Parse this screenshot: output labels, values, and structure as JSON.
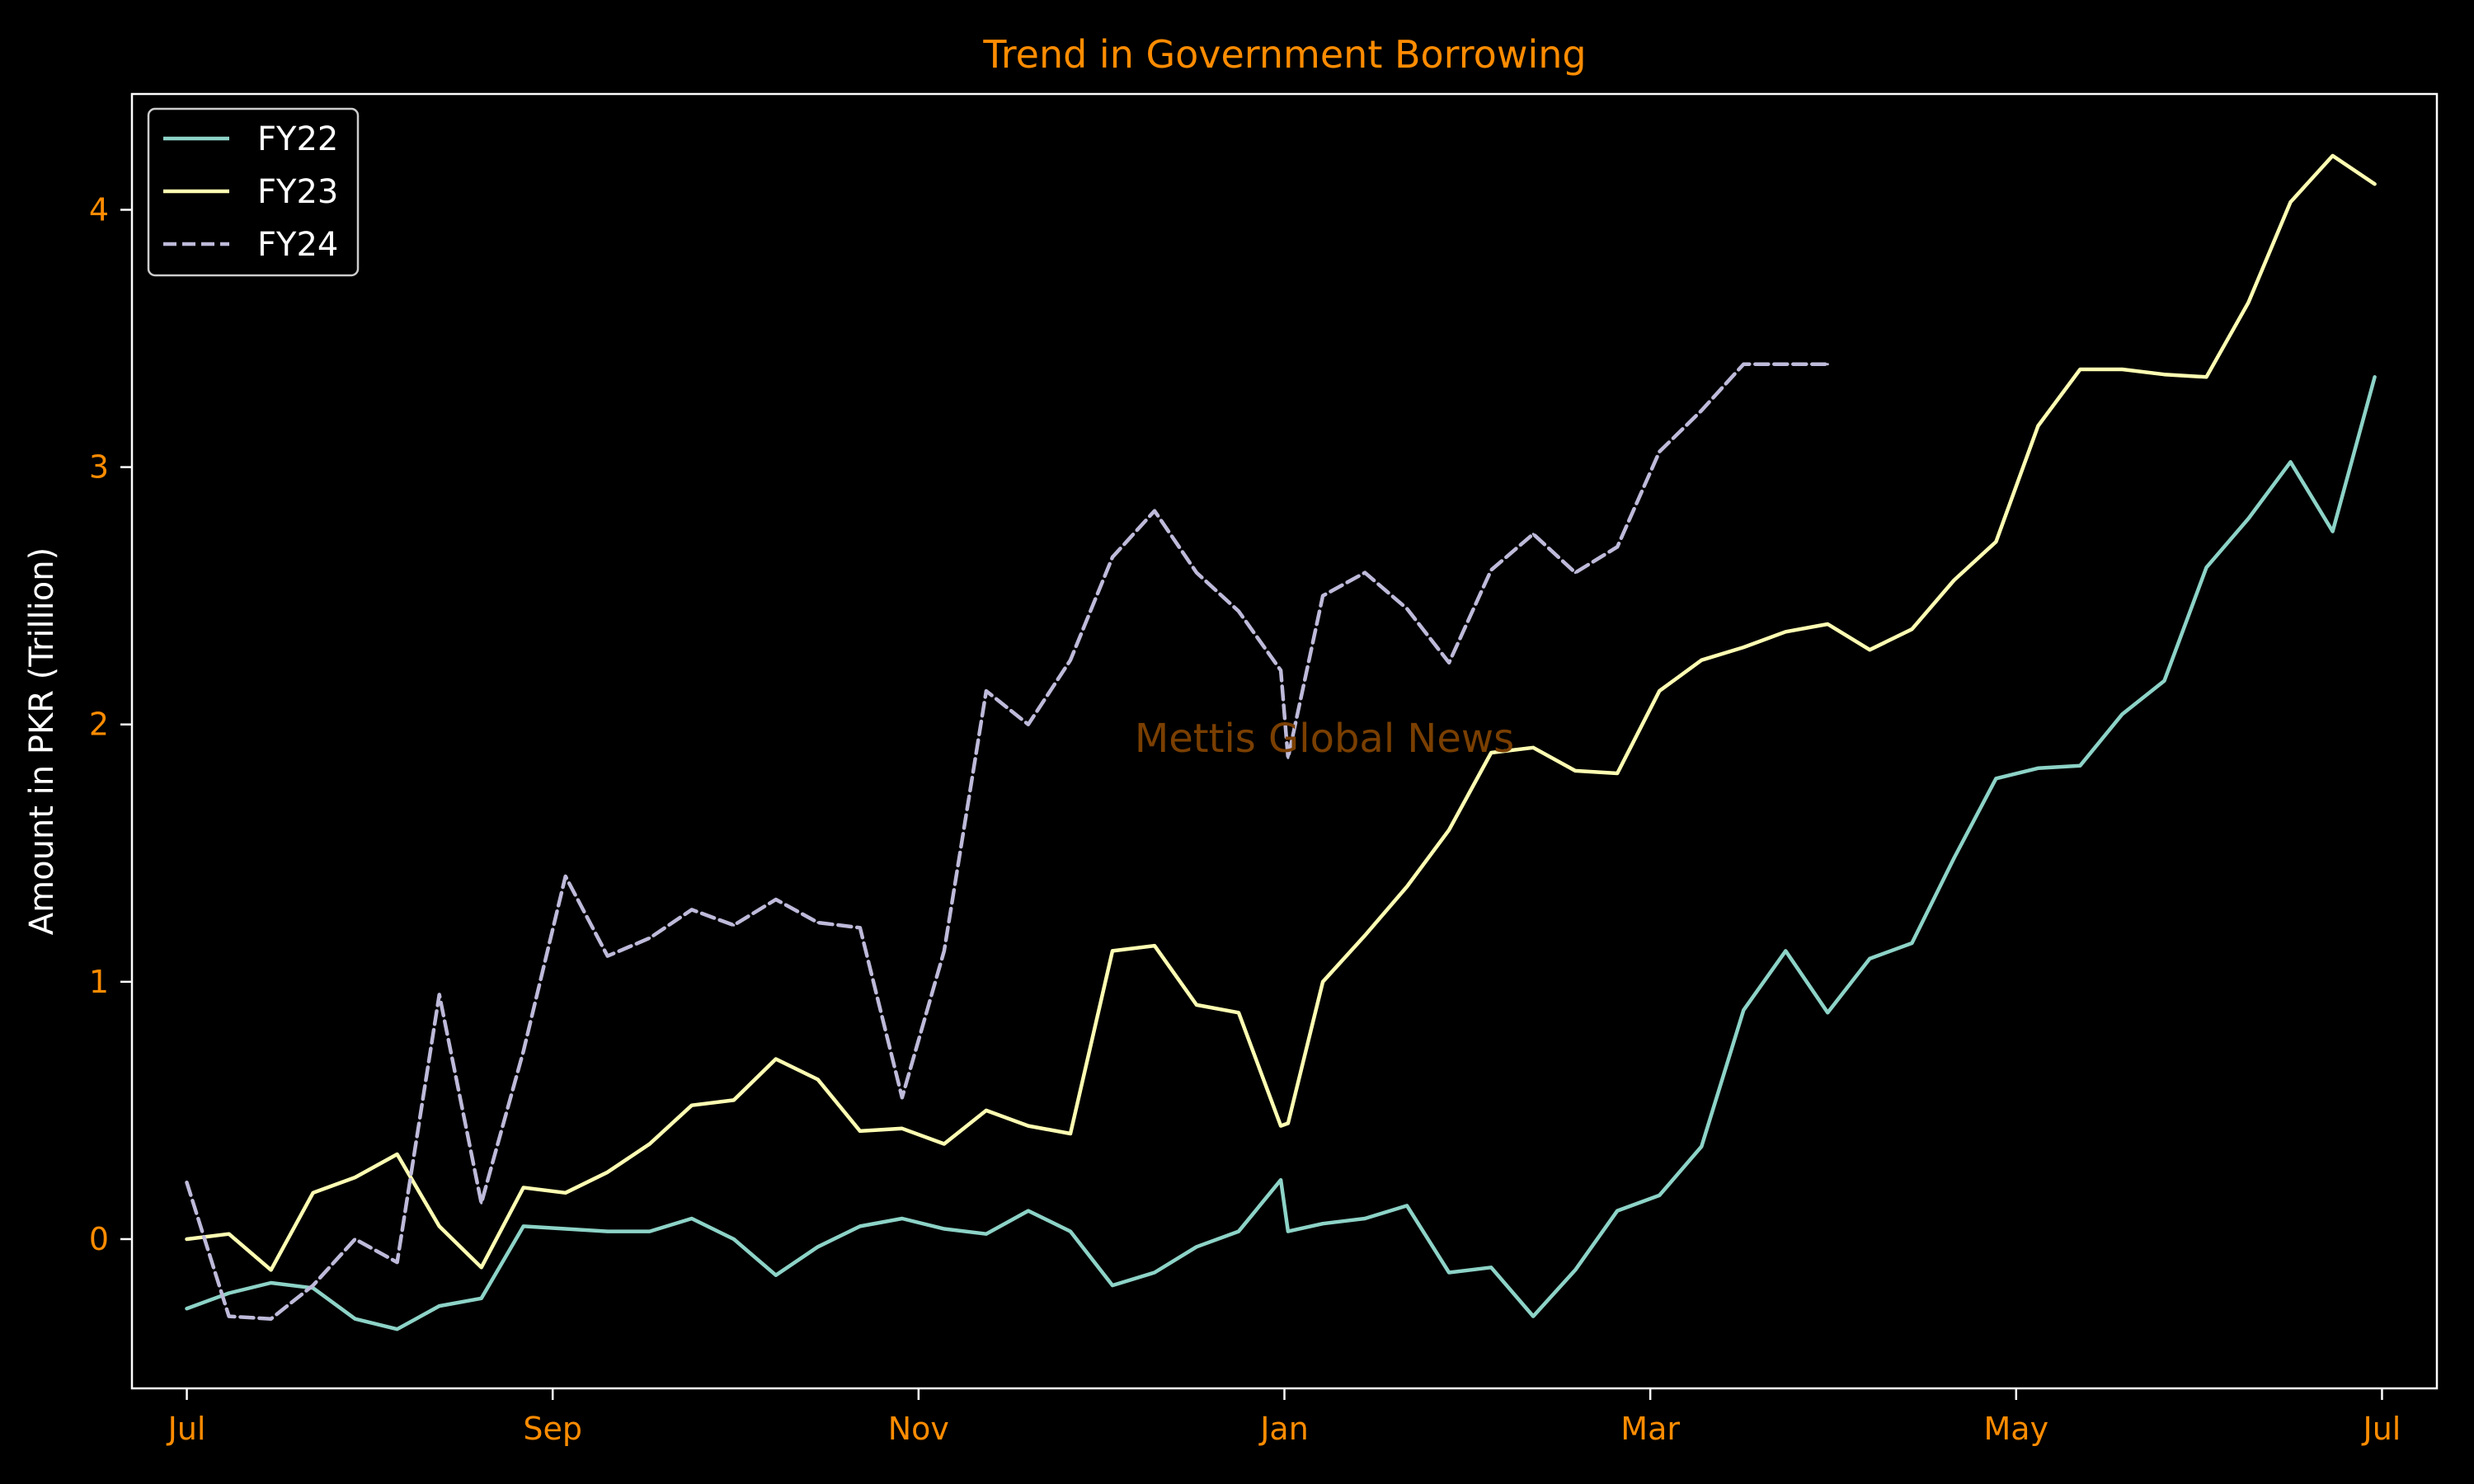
{
  "chart_data": {
    "type": "line",
    "title": "Trend in Government Borrowing",
    "xlabel": "",
    "ylabel": "Amount in PKR (Trillion)",
    "watermark": "Mettis Global News",
    "x_unit": "month of fiscal year (0 = Jul, 12 = following Jul)",
    "xlim": [
      -0.3,
      12.3
    ],
    "ylim": [
      -0.58,
      4.45
    ],
    "xticks": [
      0,
      2,
      4,
      6,
      8,
      10,
      12
    ],
    "xtick_labels": [
      "Jul",
      "Sep",
      "Nov",
      "Jan",
      "Mar",
      "May",
      "Jul"
    ],
    "yticks": [
      0,
      1,
      2,
      3,
      4
    ],
    "ytick_labels": [
      "0",
      "1",
      "2",
      "3",
      "4"
    ],
    "grid": false,
    "legend_position": "top-left",
    "colors": {
      "background": "#000000",
      "title": "#ff8c00",
      "tick_label": "#ff8c00",
      "axis_label": "#ffffff",
      "spine": "#ffffff",
      "watermark": "#7a3f00"
    },
    "series": [
      {
        "name": "FY22",
        "color": "#8dd3c7",
        "dash": "solid",
        "x": [
          0.0,
          0.23,
          0.46,
          0.69,
          0.92,
          1.15,
          1.38,
          1.61,
          1.84,
          2.07,
          2.3,
          2.53,
          2.76,
          2.99,
          3.22,
          3.45,
          3.68,
          3.91,
          4.14,
          4.37,
          4.6,
          4.83,
          5.06,
          5.29,
          5.52,
          5.75,
          5.98,
          6.02,
          6.21,
          6.44,
          6.67,
          6.9,
          7.13,
          7.36,
          7.59,
          7.82,
          8.05,
          8.28,
          8.51,
          8.74,
          8.97,
          9.2,
          9.43,
          9.66,
          9.89,
          10.12,
          10.35,
          10.58,
          10.81,
          11.04,
          11.27,
          11.5,
          11.73,
          11.96
        ],
        "y": [
          -0.27,
          -0.21,
          -0.17,
          -0.19,
          -0.31,
          -0.35,
          -0.26,
          -0.23,
          0.05,
          0.04,
          0.03,
          0.03,
          0.08,
          0.0,
          -0.14,
          -0.03,
          0.05,
          0.08,
          0.04,
          0.02,
          0.11,
          0.03,
          -0.18,
          -0.13,
          -0.03,
          0.03,
          0.23,
          0.03,
          0.06,
          0.08,
          0.13,
          -0.13,
          -0.11,
          -0.3,
          -0.12,
          0.11,
          0.17,
          0.36,
          0.89,
          1.12,
          0.88,
          1.09,
          1.15,
          1.48,
          1.79,
          1.83,
          1.84,
          2.04,
          2.17,
          2.61,
          2.8,
          3.02,
          2.75,
          3.35
        ]
      },
      {
        "name": "FY23",
        "color": "#ffffb3",
        "dash": "solid",
        "x": [
          0.0,
          0.23,
          0.46,
          0.69,
          0.92,
          1.15,
          1.38,
          1.61,
          1.84,
          2.07,
          2.3,
          2.53,
          2.76,
          2.99,
          3.22,
          3.45,
          3.68,
          3.91,
          4.14,
          4.37,
          4.6,
          4.83,
          5.06,
          5.29,
          5.52,
          5.75,
          5.98,
          6.02,
          6.21,
          6.44,
          6.67,
          6.9,
          7.13,
          7.36,
          7.59,
          7.82,
          8.05,
          8.28,
          8.51,
          8.74,
          8.97,
          9.2,
          9.43,
          9.66,
          9.89,
          10.12,
          10.35,
          10.58,
          10.81,
          11.04,
          11.27,
          11.5,
          11.73,
          11.96
        ],
        "y": [
          0.0,
          0.02,
          -0.12,
          0.18,
          0.24,
          0.33,
          0.05,
          -0.11,
          0.2,
          0.18,
          0.26,
          0.37,
          0.52,
          0.54,
          0.7,
          0.62,
          0.42,
          0.43,
          0.37,
          0.5,
          0.44,
          0.41,
          1.12,
          1.14,
          0.91,
          0.88,
          0.44,
          0.45,
          1.0,
          1.18,
          1.37,
          1.59,
          1.89,
          1.91,
          1.82,
          1.81,
          2.13,
          2.25,
          2.3,
          2.36,
          2.39,
          2.29,
          2.37,
          2.56,
          2.71,
          3.16,
          3.38,
          3.38,
          3.36,
          3.35,
          3.64,
          4.03,
          4.21,
          4.1
        ]
      },
      {
        "name": "FY24",
        "color": "#bebada",
        "dash": "dashed",
        "x": [
          0.0,
          0.23,
          0.46,
          0.69,
          0.92,
          1.15,
          1.38,
          1.61,
          1.84,
          2.07,
          2.3,
          2.53,
          2.76,
          2.99,
          3.22,
          3.45,
          3.68,
          3.91,
          4.14,
          4.37,
          4.6,
          4.83,
          5.06,
          5.29,
          5.52,
          5.75,
          5.98,
          6.02,
          6.21,
          6.44,
          6.67,
          6.9,
          7.13,
          7.36,
          7.59,
          7.82,
          8.05,
          8.28,
          8.51,
          8.74,
          8.97
        ],
        "y": [
          0.22,
          -0.3,
          -0.31,
          -0.18,
          0.0,
          -0.09,
          0.95,
          0.14,
          0.73,
          1.41,
          1.1,
          1.17,
          1.28,
          1.22,
          1.32,
          1.23,
          1.21,
          0.55,
          1.12,
          2.13,
          2.0,
          2.25,
          2.65,
          2.83,
          2.59,
          2.44,
          2.21,
          1.87,
          2.5,
          2.59,
          2.45,
          2.24,
          2.6,
          2.74,
          2.59,
          2.69,
          3.06,
          3.22,
          3.4,
          3.4,
          3.4
        ]
      }
    ]
  }
}
